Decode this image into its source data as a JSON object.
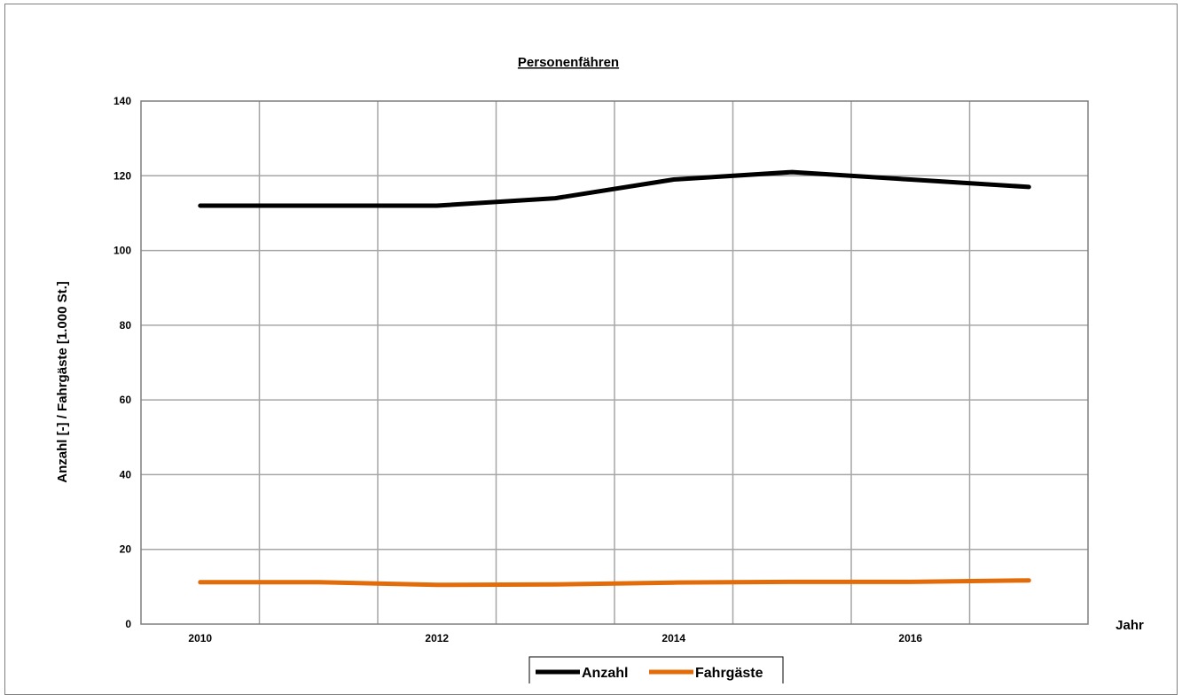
{
  "chart_data": {
    "type": "line",
    "title": "Personenfähren",
    "xlabel": "Jahr",
    "ylabel": "Anzahl [-] / Fahrgäste [1.000 St.]",
    "x": [
      2010,
      2011,
      2012,
      2013,
      2014,
      2015,
      2016,
      2017
    ],
    "x_tick_labels": [
      "2010",
      "2012",
      "2014",
      "2016"
    ],
    "xlim": [
      2009.5,
      2017.5
    ],
    "ylim": [
      0,
      140
    ],
    "y_ticks": [
      0,
      20,
      40,
      60,
      80,
      100,
      120,
      140
    ],
    "grid": true,
    "legend_position": "bottom",
    "series": [
      {
        "name": "Anzahl",
        "color": "#000000",
        "values": [
          112,
          112,
          112,
          114,
          119,
          121,
          119,
          117
        ]
      },
      {
        "name": "Fahrgäste",
        "color": "#e36c0a",
        "values": [
          11.2,
          11.2,
          10.5,
          10.6,
          11.1,
          11.3,
          11.3,
          11.7
        ]
      }
    ]
  }
}
